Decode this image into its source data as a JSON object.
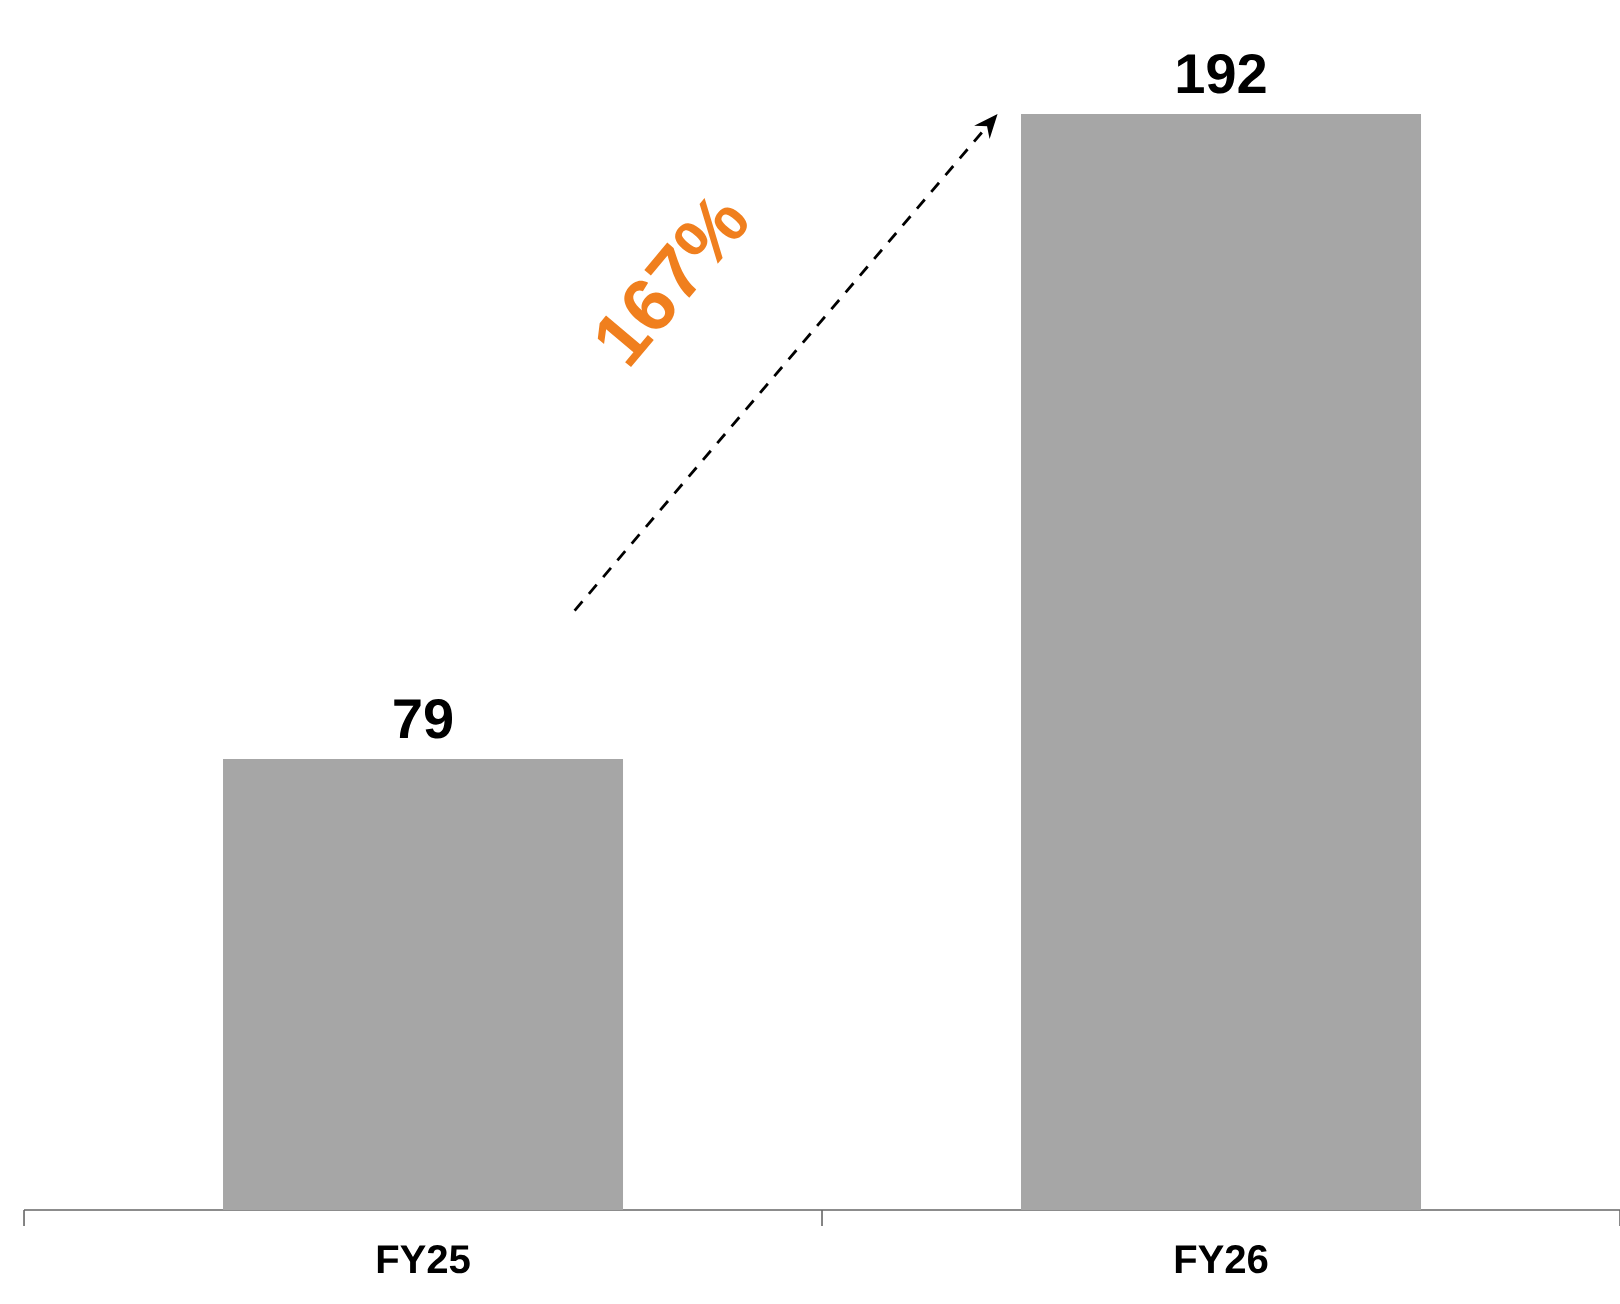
{
  "chart_data": {
    "type": "bar",
    "categories": [
      "FY25",
      "FY26"
    ],
    "values": [
      79,
      192
    ],
    "color": "#a6a6a6",
    "data_labels": true,
    "annotations": [
      "167%"
    ]
  }
}
